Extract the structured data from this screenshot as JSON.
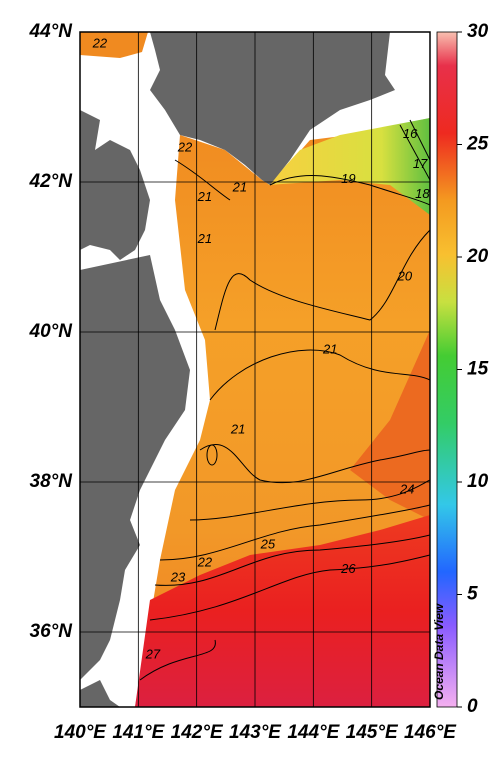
{
  "map": {
    "xlim": [
      140,
      146
    ],
    "ylim": [
      35,
      44
    ],
    "xticks": [
      {
        "value": 140,
        "label": "140°E"
      },
      {
        "value": 141,
        "label": "141°E"
      },
      {
        "value": 142,
        "label": "142°E"
      },
      {
        "value": 143,
        "label": "143°E"
      },
      {
        "value": 144,
        "label": "144°E"
      },
      {
        "value": 145,
        "label": "145°E"
      },
      {
        "value": 146,
        "label": "146°E"
      }
    ],
    "yticks": [
      {
        "value": 36,
        "label": "36°N"
      },
      {
        "value": 38,
        "label": "38°N"
      },
      {
        "value": 40,
        "label": "40°N"
      },
      {
        "value": 42,
        "label": "42°N"
      },
      {
        "value": 44,
        "label": "44°N"
      }
    ],
    "grid": true,
    "colorbar": {
      "lim": [
        0,
        30
      ],
      "ticks": [
        0,
        5,
        10,
        15,
        20,
        25,
        30
      ]
    },
    "watermark": "Ocean Data View",
    "contour_labels": [
      {
        "value": 22,
        "lon": 140.34,
        "lat": 43.84
      },
      {
        "value": 22,
        "lon": 141.8,
        "lat": 42.45
      },
      {
        "value": 21,
        "lon": 142.14,
        "lat": 41.79
      },
      {
        "value": 21,
        "lon": 142.74,
        "lat": 41.92
      },
      {
        "value": 21,
        "lon": 142.14,
        "lat": 41.23
      },
      {
        "value": 19,
        "lon": 144.6,
        "lat": 42.03
      },
      {
        "value": 16,
        "lon": 145.66,
        "lat": 42.63
      },
      {
        "value": 17,
        "lon": 145.83,
        "lat": 42.23
      },
      {
        "value": 18,
        "lon": 145.87,
        "lat": 41.83
      },
      {
        "value": 20,
        "lon": 145.57,
        "lat": 40.73
      },
      {
        "value": 21,
        "lon": 144.29,
        "lat": 39.76
      },
      {
        "value": 21,
        "lon": 142.71,
        "lat": 38.69
      },
      {
        "value": 24,
        "lon": 145.61,
        "lat": 37.89
      },
      {
        "value": 25,
        "lon": 143.22,
        "lat": 37.16
      },
      {
        "value": 22,
        "lon": 142.14,
        "lat": 36.92
      },
      {
        "value": 23,
        "lon": 141.68,
        "lat": 36.72
      },
      {
        "value": 26,
        "lon": 144.6,
        "lat": 36.83
      },
      {
        "value": 27,
        "lon": 141.25,
        "lat": 35.69
      }
    ]
  }
}
